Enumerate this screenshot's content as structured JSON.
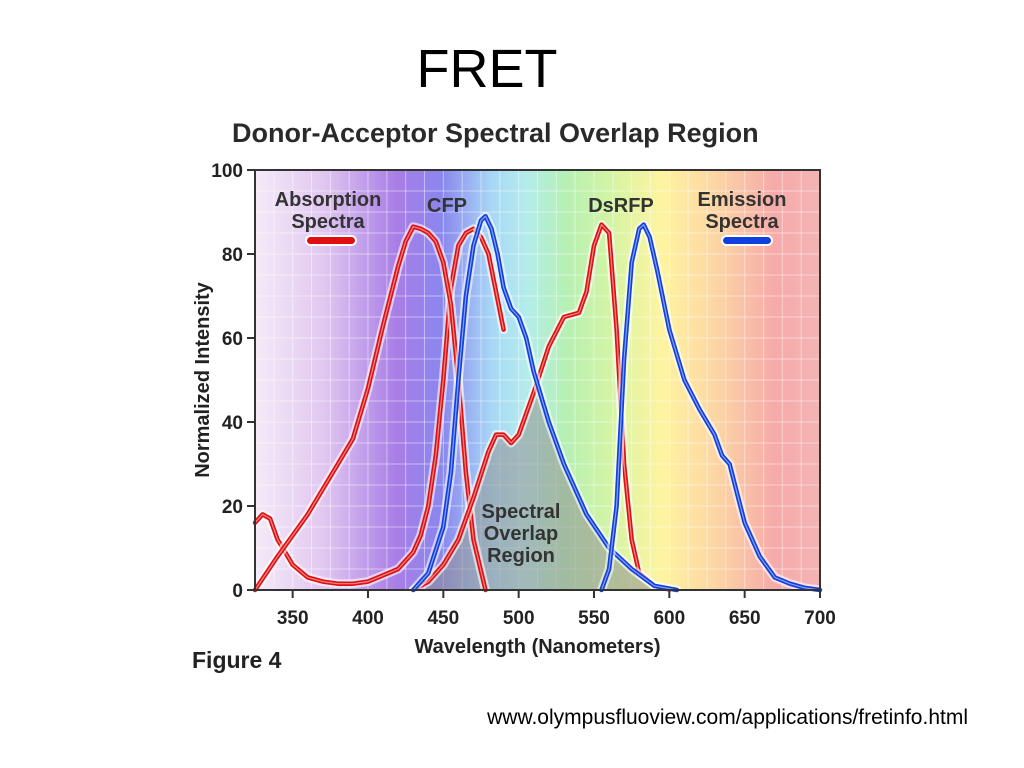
{
  "slide": {
    "title": "FRET",
    "source": "www.olympusfluoview.com/applications/fretinfo.html"
  },
  "chart_data": {
    "type": "line",
    "title": "Donor-Acceptor Spectral Overlap Region",
    "xlabel": "Wavelength (Nanometers)",
    "ylabel": "Normalized Intensity",
    "xlim": [
      325,
      700
    ],
    "ylim": [
      0,
      100
    ],
    "x_ticks": [
      350,
      400,
      450,
      500,
      550,
      600,
      650,
      700
    ],
    "y_ticks": [
      0,
      20,
      40,
      60,
      80,
      100
    ],
    "grid": true,
    "figure_label": "Figure 4",
    "legend": [
      {
        "label_lines": [
          "Absorption",
          "Spectra"
        ],
        "color": "#e01010"
      },
      {
        "label_lines": [
          "Emission",
          "Spectra"
        ],
        "color": "#1040e0"
      }
    ],
    "annotations": [
      {
        "text_lines": [
          "CFP"
        ]
      },
      {
        "text_lines": [
          "DsRFP"
        ]
      },
      {
        "text_lines": [
          "Spectral",
          "Overlap",
          "Region"
        ]
      }
    ],
    "series": [
      {
        "group": "absorption",
        "color": "#e01010",
        "x": [
          325,
          330,
          335,
          340,
          350,
          360,
          370,
          380,
          390,
          400,
          410,
          420,
          425,
          430,
          435,
          440,
          445,
          450,
          455,
          460,
          465,
          470,
          475,
          480,
          490
        ],
        "y": [
          16,
          18,
          17,
          12,
          6,
          3,
          2,
          1.5,
          1.5,
          2,
          3.5,
          5,
          7,
          9,
          13,
          20,
          32,
          50,
          72,
          82,
          85,
          86,
          84,
          80,
          62
        ]
      },
      {
        "group": "absorption",
        "color": "#e01010",
        "x": [
          325,
          340,
          360,
          380,
          390,
          400,
          410,
          420,
          425,
          430,
          435,
          440,
          445,
          450,
          455,
          460,
          465,
          470,
          478
        ],
        "y": [
          0,
          8,
          18,
          30,
          36,
          48,
          63,
          77,
          83,
          86.5,
          86,
          85,
          83,
          78,
          68,
          50,
          28,
          12,
          0
        ]
      },
      {
        "group": "absorption",
        "color": "#e01010",
        "x": [
          430,
          440,
          450,
          460,
          470,
          480,
          485,
          490,
          495,
          500,
          510,
          520,
          530,
          540,
          545,
          550,
          555,
          560,
          565,
          570,
          575,
          580,
          590,
          600
        ],
        "y": [
          0,
          2,
          6,
          12,
          22,
          33,
          37,
          37,
          35,
          37,
          47,
          58,
          65,
          66,
          71,
          82,
          87,
          85,
          62,
          30,
          12,
          4,
          1,
          0
        ]
      },
      {
        "group": "emission",
        "color": "#1040e0",
        "x": [
          430,
          440,
          450,
          455,
          460,
          465,
          470,
          475,
          478,
          482,
          486,
          490,
          495,
          500,
          505,
          510,
          520,
          530,
          545,
          560,
          575,
          590,
          605
        ],
        "y": [
          0,
          4,
          15,
          28,
          50,
          70,
          82,
          88,
          89,
          86,
          80,
          72,
          67,
          65,
          60,
          52,
          40,
          30,
          18,
          10,
          5,
          1,
          0
        ]
      },
      {
        "group": "emission",
        "color": "#1040e0",
        "x": [
          555,
          560,
          565,
          570,
          575,
          580,
          583,
          587,
          592,
          600,
          610,
          620,
          630,
          635,
          640,
          645,
          650,
          660,
          670,
          680,
          690,
          700
        ],
        "y": [
          0,
          5,
          20,
          55,
          78,
          86,
          87,
          84,
          76,
          62,
          50,
          43,
          37,
          32,
          30,
          23,
          16,
          8,
          3,
          1.5,
          0.5,
          0
        ]
      }
    ]
  }
}
